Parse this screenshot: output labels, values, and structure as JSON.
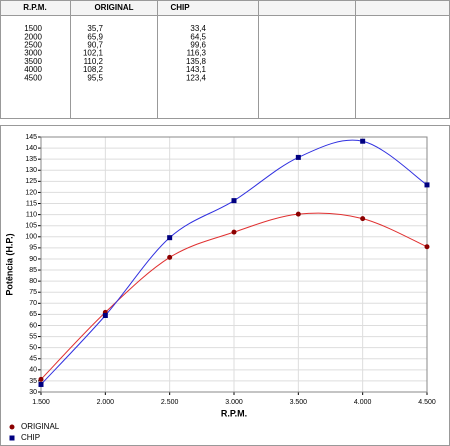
{
  "table": {
    "headers": [
      "R.P.M.",
      "ORIGINAL",
      "CHIP"
    ],
    "rows": [
      [
        "1500",
        "35,7",
        "33,4"
      ],
      [
        "2000",
        "65,9",
        "64,5"
      ],
      [
        "2500",
        "90,7",
        "99,6"
      ],
      [
        "3000",
        "102,1",
        "116,3"
      ],
      [
        "3500",
        "110,2",
        "135,8"
      ],
      [
        "4000",
        "108,2",
        "143,1"
      ],
      [
        "4500",
        "95,5",
        "123,4"
      ]
    ]
  },
  "chart_data": {
    "type": "line",
    "x_label": "R.P.M.",
    "y_label": "Potência (H.P.)",
    "x": [
      1500,
      2000,
      2500,
      3000,
      3500,
      4000,
      4500
    ],
    "series": [
      {
        "name": "ORIGINAL",
        "color": "#e03030",
        "marker_color": "#8b0000",
        "marker": "circle",
        "values": [
          35.7,
          65.9,
          90.7,
          102.1,
          110.2,
          108.2,
          95.5
        ]
      },
      {
        "name": "CHIP",
        "color": "#3030e0",
        "marker_color": "#000080",
        "marker": "square",
        "values": [
          33.4,
          64.5,
          99.6,
          116.3,
          135.8,
          143.1,
          123.4
        ]
      }
    ],
    "xlim": [
      1500,
      4500
    ],
    "xticks": [
      {
        "value": 1500,
        "label": "1.500"
      },
      {
        "value": 2000,
        "label": "2.000"
      },
      {
        "value": 2500,
        "label": "2.500"
      },
      {
        "value": 3000,
        "label": "3.000"
      },
      {
        "value": 3500,
        "label": "3.500"
      },
      {
        "value": 4000,
        "label": "4.000"
      },
      {
        "value": 4500,
        "label": "4.500"
      }
    ],
    "ylim": [
      30,
      145
    ],
    "yticks": [
      30,
      35,
      40,
      45,
      50,
      55,
      60,
      65,
      70,
      75,
      80,
      85,
      90,
      95,
      100,
      105,
      110,
      115,
      120,
      125,
      130,
      135,
      140,
      145
    ],
    "grid": true,
    "legend": "bottom-left"
  }
}
